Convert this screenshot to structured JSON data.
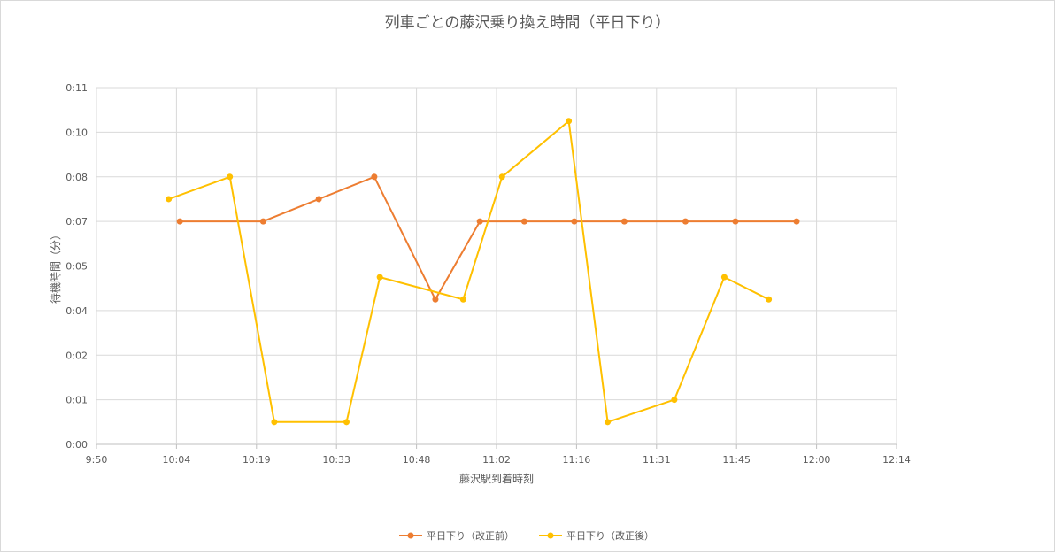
{
  "chart_data": {
    "type": "line",
    "title": "列車ごとの藤沢乗り換え時間（平日下り）",
    "xlabel": "藤沢駅到着時刻",
    "ylabel": "待機時間（分）",
    "x_ticks": [
      "9:50",
      "10:04",
      "10:19",
      "10:33",
      "10:48",
      "11:02",
      "11:16",
      "11:31",
      "11:45",
      "12:00",
      "12:14"
    ],
    "y_ticks": [
      "0:00",
      "0:01",
      "0:02",
      "0:04",
      "0:05",
      "0:07",
      "0:08",
      "0:10",
      "0:11"
    ],
    "xlim": [
      "9:50",
      "12:14"
    ],
    "ylim": [
      0,
      8
    ],
    "grid": true,
    "legend_position": "bottom",
    "series": [
      {
        "name": "平日下り（改正前）",
        "color": "#ED7D31",
        "x": [
          "10:05",
          "10:20",
          "10:30",
          "10:40",
          "10:51",
          "10:59",
          "11:07",
          "11:16",
          "11:25",
          "11:36",
          "11:45",
          "11:56"
        ],
        "y": [
          5.0,
          5.0,
          5.5,
          6.0,
          3.25,
          5.0,
          5.0,
          5.0,
          5.0,
          5.0,
          5.0,
          5.0
        ]
      },
      {
        "name": "平日下り（改正後）",
        "color": "#FFC000",
        "x": [
          "10:03",
          "10:14",
          "10:22",
          "10:35",
          "10:41",
          "10:56",
          "11:03",
          "11:15",
          "11:22",
          "11:34",
          "11:43",
          "11:51"
        ],
        "y": [
          5.5,
          6.0,
          0.5,
          0.5,
          3.75,
          3.25,
          6.0,
          7.25,
          0.5,
          1.0,
          3.75,
          3.25
        ]
      }
    ]
  }
}
